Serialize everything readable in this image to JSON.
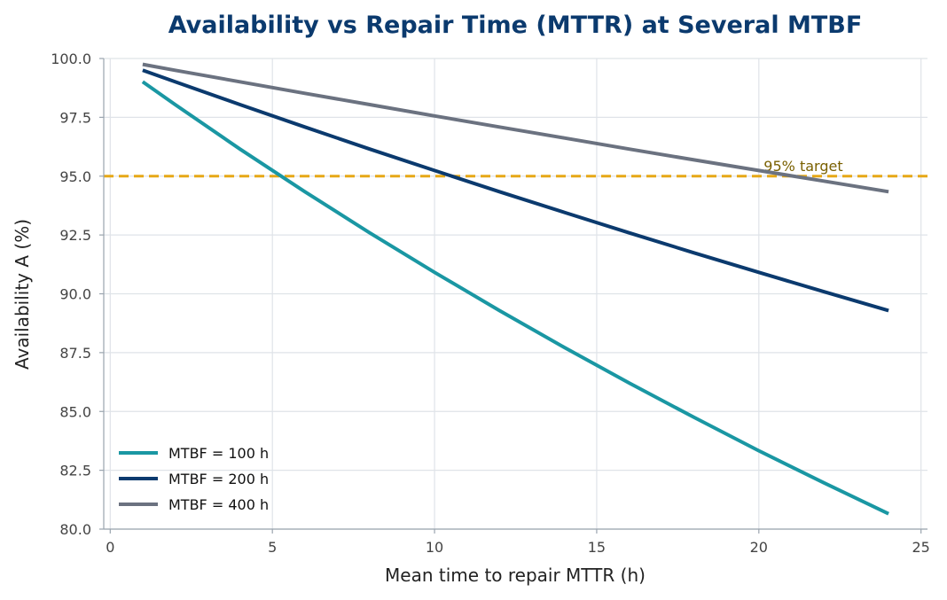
{
  "chart_data": {
    "type": "line",
    "title": "Availability vs Repair Time (MTTR) at Several MTBF",
    "xlabel": "Mean time to repair  MTTR (h)",
    "ylabel": "Availability  A (%)",
    "xlim": [
      -0.2,
      25.2
    ],
    "ylim": [
      80.0,
      100.0
    ],
    "xticks": [
      0,
      5,
      10,
      15,
      20,
      25
    ],
    "yticks": [
      80.0,
      82.5,
      85.0,
      87.5,
      90.0,
      92.5,
      95.0,
      97.5,
      100.0
    ],
    "grid": true,
    "legend_position": "lower-left",
    "series": [
      {
        "name": "MTBF = 100 h",
        "color": "#1a97a3",
        "x": [
          1,
          2,
          4,
          6,
          8,
          10,
          12,
          14,
          16,
          18,
          20,
          22,
          24
        ],
        "y": [
          99.01,
          98.04,
          96.15,
          94.34,
          92.59,
          90.91,
          89.29,
          87.72,
          86.21,
          84.75,
          83.33,
          81.97,
          80.65
        ]
      },
      {
        "name": "MTBF = 200 h",
        "color": "#0b3a6e",
        "x": [
          1,
          2,
          4,
          6,
          8,
          10,
          12,
          14,
          16,
          18,
          20,
          22,
          24
        ],
        "y": [
          99.5,
          99.01,
          98.04,
          97.09,
          96.15,
          95.24,
          94.34,
          93.46,
          92.59,
          91.74,
          90.91,
          90.09,
          89.29
        ]
      },
      {
        "name": "MTBF = 400 h",
        "color": "#6b7280",
        "x": [
          1,
          2,
          4,
          6,
          8,
          10,
          12,
          14,
          16,
          18,
          20,
          22,
          24
        ],
        "y": [
          99.75,
          99.5,
          99.01,
          98.52,
          98.04,
          97.56,
          97.09,
          96.62,
          96.15,
          95.69,
          95.24,
          94.79,
          94.34
        ]
      }
    ],
    "reference_line": {
      "y": 95.0,
      "label": "95% target",
      "color": "#e6a817"
    }
  }
}
